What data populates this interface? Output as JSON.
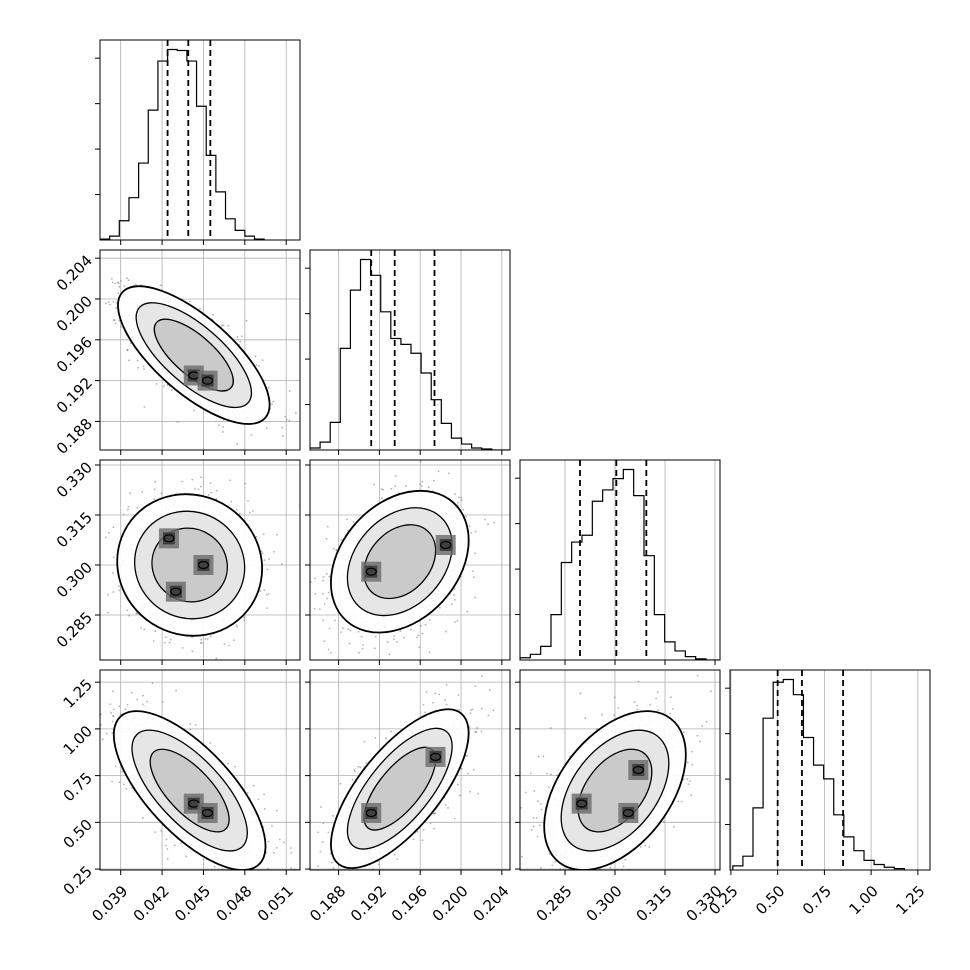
{
  "chart_data": {
    "type": "corner",
    "parameters": [
      {
        "range": [
          0.0375,
          0.052
        ],
        "ticks": [
          0.039,
          0.042,
          0.045,
          0.048,
          0.051
        ],
        "tick_labels": [
          "0.039",
          "0.042",
          "0.045",
          "0.048",
          "0.051"
        ],
        "quantiles": [
          0.0424,
          0.0439,
          0.0455
        ],
        "hist_start": 0.0375,
        "hist_bin_width": 0.0007,
        "hist_values": [
          1,
          4,
          20,
          44,
          80,
          135,
          186,
          198,
          197,
          186,
          139,
          88,
          50,
          22,
          10,
          4,
          1
        ]
      },
      {
        "range": [
          0.1852,
          0.2048
        ],
        "ticks": [
          0.188,
          0.192,
          0.196,
          0.2,
          0.204
        ],
        "tick_labels": [
          "0.188",
          "0.192",
          "0.196",
          "0.200",
          "0.204"
        ],
        "quantiles": [
          0.1912,
          0.1935,
          0.1974
        ],
        "hist_start": 0.1852,
        "hist_bin_width": 0.00099,
        "hist_values": [
          2,
          8,
          28,
          103,
          162,
          193,
          177,
          140,
          113,
          107,
          98,
          78,
          51,
          27,
          12,
          6,
          2,
          1,
          0,
          0
        ]
      },
      {
        "range": [
          0.2715,
          0.3315
        ],
        "ticks": [
          0.285,
          0.3,
          0.315,
          0.33
        ],
        "tick_labels": [
          "0.285",
          "0.300",
          "0.315",
          "0.330"
        ],
        "quantiles": [
          0.2895,
          0.3004,
          0.3094
        ],
        "hist_start": 0.2715,
        "hist_bin_width": 0.0031,
        "hist_values": [
          2,
          5,
          12,
          40,
          86,
          104,
          110,
          140,
          150,
          160,
          168,
          145,
          92,
          40,
          16,
          8,
          3,
          1,
          0,
          0
        ]
      },
      {
        "range": [
          0.245,
          1.315
        ],
        "ticks": [
          0.25,
          0.5,
          0.75,
          1.0,
          1.25
        ],
        "tick_labels": [
          "0.25",
          "0.50",
          "0.75",
          "1.00",
          "1.25"
        ],
        "quantiles": [
          0.5,
          0.63,
          0.85
        ],
        "hist_start": 0.26,
        "hist_bin_width": 0.054,
        "hist_values": [
          3,
          10,
          45,
          110,
          136,
          138,
          127,
          96,
          76,
          66,
          40,
          24,
          14,
          7,
          4,
          2,
          1
        ]
      }
    ],
    "joint": [
      {
        "row": 1,
        "col": 0,
        "mean": [
          0.0443,
          0.1945
        ],
        "sd": [
          0.0022,
          0.0027
        ],
        "corr": -0.72,
        "density_peaks": [
          [
            0.0443,
            0.1925
          ],
          [
            0.0453,
            0.192
          ]
        ]
      },
      {
        "row": 2,
        "col": 0,
        "mean": [
          0.044,
          0.3
        ],
        "sd": [
          0.0021,
          0.0085
        ],
        "corr": -0.05,
        "density_peaks": [
          [
            0.0425,
            0.308
          ],
          [
            0.045,
            0.3
          ],
          [
            0.043,
            0.292
          ]
        ]
      },
      {
        "row": 2,
        "col": 1,
        "mean": [
          0.194,
          0.301
        ],
        "sd": [
          0.0027,
          0.0085
        ],
        "corr": 0.3,
        "density_peaks": [
          [
            0.1912,
            0.298
          ],
          [
            0.1985,
            0.306
          ]
        ]
      },
      {
        "row": 3,
        "col": 0,
        "mean": [
          0.044,
          0.67
        ],
        "sd": [
          0.0022,
          0.17
        ],
        "corr": -0.7,
        "density_peaks": [
          [
            0.0443,
            0.6
          ],
          [
            0.0453,
            0.55
          ]
        ]
      },
      {
        "row": 3,
        "col": 1,
        "mean": [
          0.194,
          0.68
        ],
        "sd": [
          0.0027,
          0.17
        ],
        "corr": 0.7,
        "density_peaks": [
          [
            0.1912,
            0.55
          ],
          [
            0.1975,
            0.85
          ]
        ]
      },
      {
        "row": 3,
        "col": 2,
        "mean": [
          0.3,
          0.67
        ],
        "sd": [
          0.0085,
          0.17
        ],
        "corr": 0.45,
        "density_peaks": [
          [
            0.29,
            0.6
          ],
          [
            0.304,
            0.55
          ],
          [
            0.307,
            0.78
          ]
        ]
      }
    ],
    "grid": true,
    "xlabels": [
      "",
      "",
      "",
      ""
    ],
    "ylabels": [
      "",
      "",
      "",
      ""
    ]
  }
}
